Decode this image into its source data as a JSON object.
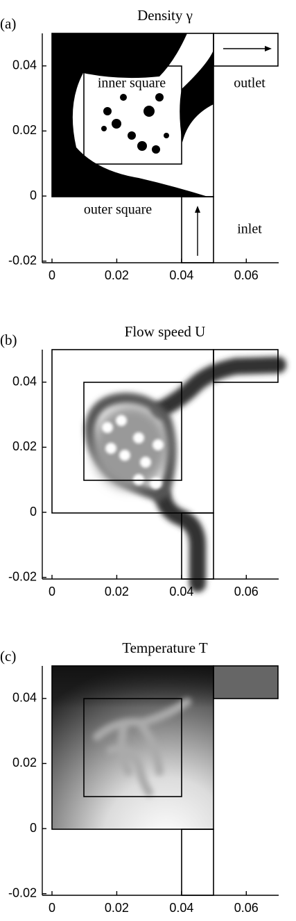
{
  "chart_data": [
    {
      "type": "image",
      "label": "(a)",
      "title": "Density γ",
      "xlim": [
        -0.003,
        0.07
      ],
      "ylim": [
        -0.0205,
        0.05
      ],
      "xticks": [
        0,
        0.02,
        0.04,
        0.06
      ],
      "yticks": [
        -0.02,
        0,
        0.02,
        0.04
      ],
      "annotations": [
        "inner square",
        "outer square",
        "outlet",
        "inlet"
      ]
    },
    {
      "type": "image",
      "label": "(b)",
      "title": "Flow speed U",
      "xlim": [
        -0.003,
        0.07
      ],
      "ylim": [
        -0.0205,
        0.05
      ],
      "xticks": [
        0,
        0.02,
        0.04,
        0.06
      ],
      "yticks": [
        -0.02,
        0,
        0.02,
        0.04
      ]
    },
    {
      "type": "image",
      "label": "(c)",
      "title": "Temperature T",
      "xlim": [
        -0.003,
        0.07
      ],
      "ylim": [
        -0.0205,
        0.05
      ],
      "xticks": [
        0,
        0.02,
        0.04,
        0.06
      ],
      "yticks": [
        -0.02,
        0,
        0.02,
        0.04
      ]
    }
  ]
}
